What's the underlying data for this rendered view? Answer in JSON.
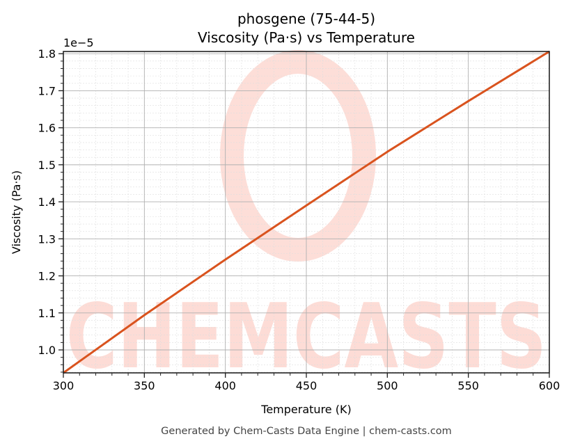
{
  "chart_data": {
    "type": "line",
    "title": "phosgene (75-44-5)",
    "subtitle": "Viscosity (Pa·s) vs Temperature",
    "xlabel": "Temperature (K)",
    "ylabel": "Viscosity (Pa·s)",
    "y_offset_label": "1e−5",
    "y_scale": 1e-05,
    "xlim": [
      300,
      600
    ],
    "ylim": [
      0.938,
      1.806
    ],
    "x_ticks": [
      300,
      350,
      400,
      450,
      500,
      550,
      600
    ],
    "x_tick_labels": [
      "300",
      "350",
      "400",
      "450",
      "500",
      "550",
      "600"
    ],
    "y_ticks": [
      1.0,
      1.1,
      1.2,
      1.3,
      1.4,
      1.5,
      1.6,
      1.7,
      1.8
    ],
    "y_tick_labels": [
      "1.0",
      "1.1",
      "1.2",
      "1.3",
      "1.4",
      "1.5",
      "1.6",
      "1.7",
      "1.8"
    ],
    "x_minor_step": 10,
    "y_minor_step": 0.02,
    "grid": true,
    "legend": null,
    "series": [
      {
        "name": "Viscosity",
        "color": "#D9531E",
        "x": [
          300,
          350,
          400,
          450,
          500,
          550,
          600
        ],
        "values": [
          0.938,
          1.094,
          1.244,
          1.39,
          1.535,
          1.672,
          1.806
        ]
      }
    ]
  },
  "watermark": {
    "text": "CHEMCASTS",
    "color": "#FDDCD6"
  },
  "footer": {
    "text": "Generated by Chem-Casts Data Engine | chem-casts.com"
  }
}
